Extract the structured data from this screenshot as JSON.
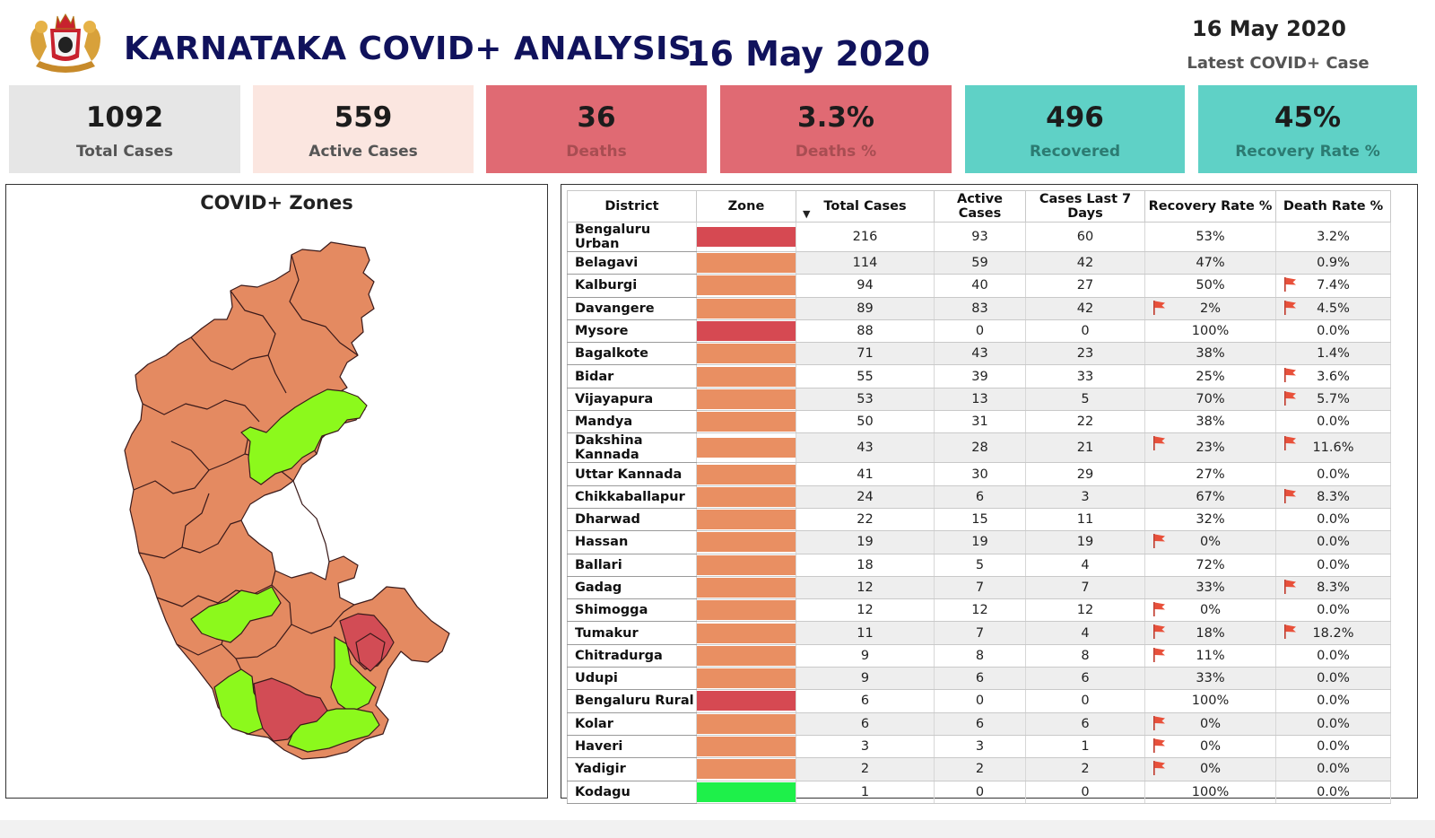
{
  "header": {
    "title": "KARNATAKA COVID+ ANALYSIS:",
    "title_date": "16 May 2020",
    "latest_date": "16 May 2020",
    "latest_label": "Latest COVID+ Case"
  },
  "colors": {
    "title": "#10125c",
    "red_zone": "#d64952",
    "orange_zone": "#e98f62",
    "green_zone": "#1ef04a",
    "map_orange": "#e48a61",
    "map_green": "#8cf91c",
    "map_red": "#d24c55",
    "card_gray": "#e6e6e6",
    "card_pink": "#fbe6e0",
    "card_red": "#e06a73",
    "card_teal": "#5fd1c6"
  },
  "kpis": [
    {
      "value": "1092",
      "label": "Total Cases"
    },
    {
      "value": "559",
      "label": "Active Cases"
    },
    {
      "value": "36",
      "label": "Deaths"
    },
    {
      "value": "3.3%",
      "label": "Deaths %"
    },
    {
      "value": "496",
      "label": "Recovered"
    },
    {
      "value": "45%",
      "label": "Recovery Rate %"
    }
  ],
  "map": {
    "title": "COVID+ Zones"
  },
  "table": {
    "columns": [
      "District",
      "Zone",
      "Total Cases",
      "Active Cases",
      "Cases Last 7 Days",
      "Recovery Rate %",
      "Death Rate %"
    ],
    "sort_icon": "sort-down-icon",
    "rows": [
      {
        "district": "Bengaluru Urban",
        "zone": "red",
        "total": "216",
        "active": "93",
        "last7": "60",
        "recovery": "53%",
        "death": "3.2%",
        "rec_flag": false,
        "death_flag": false
      },
      {
        "district": "Belagavi",
        "zone": "orange",
        "total": "114",
        "active": "59",
        "last7": "42",
        "recovery": "47%",
        "death": "0.9%",
        "rec_flag": false,
        "death_flag": false
      },
      {
        "district": "Kalburgi",
        "zone": "orange",
        "total": "94",
        "active": "40",
        "last7": "27",
        "recovery": "50%",
        "death": "7.4%",
        "rec_flag": false,
        "death_flag": true
      },
      {
        "district": "Davangere",
        "zone": "orange",
        "total": "89",
        "active": "83",
        "last7": "42",
        "recovery": "2%",
        "death": "4.5%",
        "rec_flag": true,
        "death_flag": true
      },
      {
        "district": "Mysore",
        "zone": "red",
        "total": "88",
        "active": "0",
        "last7": "0",
        "recovery": "100%",
        "death": "0.0%",
        "rec_flag": false,
        "death_flag": false
      },
      {
        "district": "Bagalkote",
        "zone": "orange",
        "total": "71",
        "active": "43",
        "last7": "23",
        "recovery": "38%",
        "death": "1.4%",
        "rec_flag": false,
        "death_flag": false
      },
      {
        "district": "Bidar",
        "zone": "orange",
        "total": "55",
        "active": "39",
        "last7": "33",
        "recovery": "25%",
        "death": "3.6%",
        "rec_flag": false,
        "death_flag": true
      },
      {
        "district": "Vijayapura",
        "zone": "orange",
        "total": "53",
        "active": "13",
        "last7": "5",
        "recovery": "70%",
        "death": "5.7%",
        "rec_flag": false,
        "death_flag": true
      },
      {
        "district": "Mandya",
        "zone": "orange",
        "total": "50",
        "active": "31",
        "last7": "22",
        "recovery": "38%",
        "death": "0.0%",
        "rec_flag": false,
        "death_flag": false
      },
      {
        "district": "Dakshina Kannada",
        "zone": "orange",
        "total": "43",
        "active": "28",
        "last7": "21",
        "recovery": "23%",
        "death": "11.6%",
        "rec_flag": true,
        "death_flag": true
      },
      {
        "district": "Uttar Kannada",
        "zone": "orange",
        "total": "41",
        "active": "30",
        "last7": "29",
        "recovery": "27%",
        "death": "0.0%",
        "rec_flag": false,
        "death_flag": false
      },
      {
        "district": "Chikkaballapur",
        "zone": "orange",
        "total": "24",
        "active": "6",
        "last7": "3",
        "recovery": "67%",
        "death": "8.3%",
        "rec_flag": false,
        "death_flag": true
      },
      {
        "district": "Dharwad",
        "zone": "orange",
        "total": "22",
        "active": "15",
        "last7": "11",
        "recovery": "32%",
        "death": "0.0%",
        "rec_flag": false,
        "death_flag": false
      },
      {
        "district": "Hassan",
        "zone": "orange",
        "total": "19",
        "active": "19",
        "last7": "19",
        "recovery": "0%",
        "death": "0.0%",
        "rec_flag": true,
        "death_flag": false
      },
      {
        "district": "Ballari",
        "zone": "orange",
        "total": "18",
        "active": "5",
        "last7": "4",
        "recovery": "72%",
        "death": "0.0%",
        "rec_flag": false,
        "death_flag": false
      },
      {
        "district": "Gadag",
        "zone": "orange",
        "total": "12",
        "active": "7",
        "last7": "7",
        "recovery": "33%",
        "death": "8.3%",
        "rec_flag": false,
        "death_flag": true
      },
      {
        "district": "Shimogga",
        "zone": "orange",
        "total": "12",
        "active": "12",
        "last7": "12",
        "recovery": "0%",
        "death": "0.0%",
        "rec_flag": true,
        "death_flag": false
      },
      {
        "district": "Tumakur",
        "zone": "orange",
        "total": "11",
        "active": "7",
        "last7": "4",
        "recovery": "18%",
        "death": "18.2%",
        "rec_flag": true,
        "death_flag": true
      },
      {
        "district": "Chitradurga",
        "zone": "orange",
        "total": "9",
        "active": "8",
        "last7": "8",
        "recovery": "11%",
        "death": "0.0%",
        "rec_flag": true,
        "death_flag": false
      },
      {
        "district": "Udupi",
        "zone": "orange",
        "total": "9",
        "active": "6",
        "last7": "6",
        "recovery": "33%",
        "death": "0.0%",
        "rec_flag": false,
        "death_flag": false
      },
      {
        "district": "Bengaluru Rural",
        "zone": "red",
        "total": "6",
        "active": "0",
        "last7": "0",
        "recovery": "100%",
        "death": "0.0%",
        "rec_flag": false,
        "death_flag": false
      },
      {
        "district": "Kolar",
        "zone": "orange",
        "total": "6",
        "active": "6",
        "last7": "6",
        "recovery": "0%",
        "death": "0.0%",
        "rec_flag": true,
        "death_flag": false
      },
      {
        "district": "Haveri",
        "zone": "orange",
        "total": "3",
        "active": "3",
        "last7": "1",
        "recovery": "0%",
        "death": "0.0%",
        "rec_flag": true,
        "death_flag": false
      },
      {
        "district": "Yadigir",
        "zone": "orange",
        "total": "2",
        "active": "2",
        "last7": "2",
        "recovery": "0%",
        "death": "0.0%",
        "rec_flag": true,
        "death_flag": false
      },
      {
        "district": "Kodagu",
        "zone": "green",
        "total": "1",
        "active": "0",
        "last7": "0",
        "recovery": "100%",
        "death": "0.0%",
        "rec_flag": false,
        "death_flag": false
      }
    ]
  }
}
